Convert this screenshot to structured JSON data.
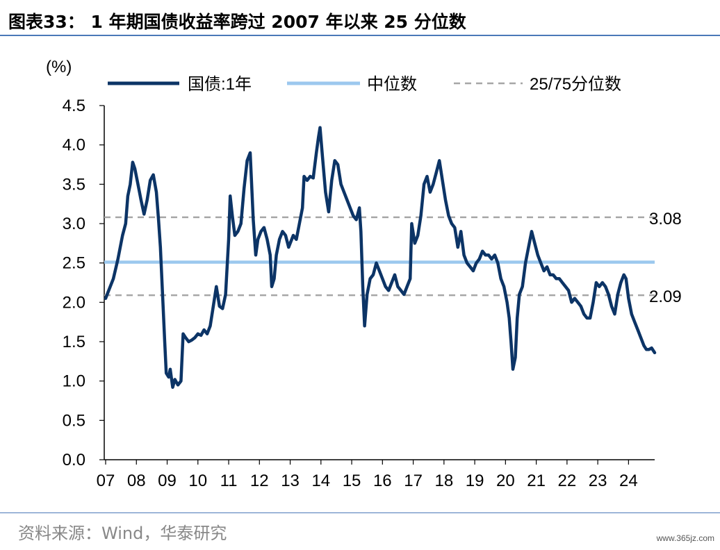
{
  "page": {
    "title": "图表33： 1 年期国债收益率跨过 2007 年以来 25 分位数",
    "source": "资料来源：Wind，华泰研究",
    "watermark": "www.365jz.com"
  },
  "colors": {
    "series_main": "#0c3466",
    "median": "#9cc8ee",
    "quantile": "#a6a6a6",
    "rule": "#4a78b8"
  },
  "chart_data": {
    "type": "line",
    "ylabel": "(%)",
    "ylim": [
      0,
      4.5
    ],
    "yticks": [
      0.0,
      0.5,
      1.0,
      1.5,
      2.0,
      2.5,
      3.0,
      3.5,
      4.0,
      4.5
    ],
    "ytick_labels": [
      "0.0",
      "0.5",
      "1.0",
      "1.5",
      "2.0",
      "2.5",
      "3.0",
      "3.5",
      "4.0",
      "4.5"
    ],
    "xlim": [
      2007.0,
      2024.85
    ],
    "xtick_labels": [
      "07",
      "08",
      "09",
      "10",
      "11",
      "12",
      "13",
      "14",
      "15",
      "16",
      "17",
      "18",
      "19",
      "20",
      "21",
      "22",
      "23",
      "24"
    ],
    "grid": false,
    "legend_position": "top",
    "legend": [
      "国债:1年",
      "中位数",
      "25/75分位数"
    ],
    "series": [
      {
        "name": "国债:1年",
        "points": [
          [
            2007.0,
            2.05
          ],
          [
            2007.1,
            2.15
          ],
          [
            2007.25,
            2.3
          ],
          [
            2007.4,
            2.55
          ],
          [
            2007.55,
            2.85
          ],
          [
            2007.65,
            3.0
          ],
          [
            2007.72,
            3.35
          ],
          [
            2007.8,
            3.5
          ],
          [
            2007.88,
            3.78
          ],
          [
            2007.95,
            3.7
          ],
          [
            2008.05,
            3.5
          ],
          [
            2008.15,
            3.3
          ],
          [
            2008.25,
            3.12
          ],
          [
            2008.35,
            3.3
          ],
          [
            2008.45,
            3.55
          ],
          [
            2008.55,
            3.62
          ],
          [
            2008.65,
            3.4
          ],
          [
            2008.72,
            3.05
          ],
          [
            2008.78,
            2.7
          ],
          [
            2008.85,
            2.1
          ],
          [
            2008.92,
            1.5
          ],
          [
            2008.97,
            1.1
          ],
          [
            2009.05,
            1.05
          ],
          [
            2009.1,
            1.15
          ],
          [
            2009.18,
            0.92
          ],
          [
            2009.25,
            1.02
          ],
          [
            2009.35,
            0.95
          ],
          [
            2009.45,
            1.0
          ],
          [
            2009.52,
            1.6
          ],
          [
            2009.6,
            1.55
          ],
          [
            2009.7,
            1.5
          ],
          [
            2009.8,
            1.52
          ],
          [
            2009.9,
            1.55
          ],
          [
            2010.0,
            1.6
          ],
          [
            2010.1,
            1.58
          ],
          [
            2010.2,
            1.65
          ],
          [
            2010.3,
            1.6
          ],
          [
            2010.4,
            1.7
          ],
          [
            2010.5,
            1.95
          ],
          [
            2010.6,
            2.2
          ],
          [
            2010.7,
            1.95
          ],
          [
            2010.8,
            1.92
          ],
          [
            2010.9,
            2.1
          ],
          [
            2011.0,
            2.8
          ],
          [
            2011.05,
            3.35
          ],
          [
            2011.12,
            3.1
          ],
          [
            2011.2,
            2.85
          ],
          [
            2011.3,
            2.9
          ],
          [
            2011.4,
            3.0
          ],
          [
            2011.5,
            3.45
          ],
          [
            2011.6,
            3.8
          ],
          [
            2011.7,
            3.9
          ],
          [
            2011.8,
            3.05
          ],
          [
            2011.88,
            2.6
          ],
          [
            2011.95,
            2.8
          ],
          [
            2012.05,
            2.9
          ],
          [
            2012.15,
            2.95
          ],
          [
            2012.25,
            2.8
          ],
          [
            2012.35,
            2.6
          ],
          [
            2012.4,
            2.2
          ],
          [
            2012.48,
            2.3
          ],
          [
            2012.55,
            2.6
          ],
          [
            2012.65,
            2.8
          ],
          [
            2012.75,
            2.9
          ],
          [
            2012.85,
            2.85
          ],
          [
            2012.95,
            2.7
          ],
          [
            2013.1,
            2.85
          ],
          [
            2013.2,
            2.8
          ],
          [
            2013.3,
            3.0
          ],
          [
            2013.4,
            3.2
          ],
          [
            2013.45,
            3.6
          ],
          [
            2013.55,
            3.55
          ],
          [
            2013.65,
            3.6
          ],
          [
            2013.75,
            3.58
          ],
          [
            2013.85,
            3.9
          ],
          [
            2013.92,
            4.1
          ],
          [
            2013.97,
            4.22
          ],
          [
            2014.05,
            3.85
          ],
          [
            2014.15,
            3.4
          ],
          [
            2014.25,
            3.15
          ],
          [
            2014.35,
            3.55
          ],
          [
            2014.45,
            3.8
          ],
          [
            2014.55,
            3.75
          ],
          [
            2014.65,
            3.5
          ],
          [
            2014.75,
            3.4
          ],
          [
            2014.85,
            3.3
          ],
          [
            2014.95,
            3.2
          ],
          [
            2015.05,
            3.1
          ],
          [
            2015.15,
            3.05
          ],
          [
            2015.25,
            3.2
          ],
          [
            2015.3,
            2.9
          ],
          [
            2015.36,
            2.2
          ],
          [
            2015.42,
            1.7
          ],
          [
            2015.5,
            2.1
          ],
          [
            2015.6,
            2.3
          ],
          [
            2015.7,
            2.35
          ],
          [
            2015.8,
            2.5
          ],
          [
            2015.9,
            2.4
          ],
          [
            2016.0,
            2.3
          ],
          [
            2016.1,
            2.2
          ],
          [
            2016.2,
            2.15
          ],
          [
            2016.3,
            2.25
          ],
          [
            2016.4,
            2.35
          ],
          [
            2016.5,
            2.2
          ],
          [
            2016.6,
            2.15
          ],
          [
            2016.7,
            2.1
          ],
          [
            2016.8,
            2.2
          ],
          [
            2016.9,
            2.3
          ],
          [
            2016.95,
            3.0
          ],
          [
            2017.05,
            2.75
          ],
          [
            2017.15,
            2.85
          ],
          [
            2017.25,
            3.1
          ],
          [
            2017.35,
            3.5
          ],
          [
            2017.45,
            3.6
          ],
          [
            2017.55,
            3.4
          ],
          [
            2017.65,
            3.5
          ],
          [
            2017.75,
            3.65
          ],
          [
            2017.85,
            3.8
          ],
          [
            2017.95,
            3.55
          ],
          [
            2018.05,
            3.3
          ],
          [
            2018.15,
            3.1
          ],
          [
            2018.25,
            3.0
          ],
          [
            2018.35,
            2.95
          ],
          [
            2018.45,
            2.7
          ],
          [
            2018.55,
            2.9
          ],
          [
            2018.65,
            2.6
          ],
          [
            2018.75,
            2.5
          ],
          [
            2018.85,
            2.45
          ],
          [
            2018.95,
            2.4
          ],
          [
            2019.05,
            2.5
          ],
          [
            2019.15,
            2.55
          ],
          [
            2019.25,
            2.65
          ],
          [
            2019.35,
            2.6
          ],
          [
            2019.45,
            2.6
          ],
          [
            2019.55,
            2.55
          ],
          [
            2019.65,
            2.6
          ],
          [
            2019.75,
            2.5
          ],
          [
            2019.85,
            2.3
          ],
          [
            2019.95,
            2.2
          ],
          [
            2020.05,
            2.0
          ],
          [
            2020.12,
            1.8
          ],
          [
            2020.18,
            1.5
          ],
          [
            2020.24,
            1.15
          ],
          [
            2020.32,
            1.3
          ],
          [
            2020.38,
            1.8
          ],
          [
            2020.45,
            2.1
          ],
          [
            2020.55,
            2.2
          ],
          [
            2020.65,
            2.5
          ],
          [
            2020.75,
            2.7
          ],
          [
            2020.85,
            2.9
          ],
          [
            2020.95,
            2.75
          ],
          [
            2021.05,
            2.6
          ],
          [
            2021.15,
            2.5
          ],
          [
            2021.25,
            2.4
          ],
          [
            2021.35,
            2.45
          ],
          [
            2021.45,
            2.35
          ],
          [
            2021.55,
            2.35
          ],
          [
            2021.65,
            2.3
          ],
          [
            2021.75,
            2.3
          ],
          [
            2021.85,
            2.25
          ],
          [
            2021.95,
            2.2
          ],
          [
            2022.05,
            2.15
          ],
          [
            2022.15,
            2.0
          ],
          [
            2022.25,
            2.05
          ],
          [
            2022.35,
            2.0
          ],
          [
            2022.45,
            1.95
          ],
          [
            2022.55,
            1.85
          ],
          [
            2022.65,
            1.8
          ],
          [
            2022.75,
            1.8
          ],
          [
            2022.85,
            2.0
          ],
          [
            2022.95,
            2.25
          ],
          [
            2023.05,
            2.2
          ],
          [
            2023.15,
            2.25
          ],
          [
            2023.25,
            2.2
          ],
          [
            2023.35,
            2.1
          ],
          [
            2023.45,
            1.95
          ],
          [
            2023.55,
            1.85
          ],
          [
            2023.65,
            2.1
          ],
          [
            2023.75,
            2.25
          ],
          [
            2023.85,
            2.35
          ],
          [
            2023.92,
            2.3
          ],
          [
            2024.0,
            2.05
          ],
          [
            2024.1,
            1.85
          ],
          [
            2024.2,
            1.75
          ],
          [
            2024.3,
            1.65
          ],
          [
            2024.4,
            1.55
          ],
          [
            2024.5,
            1.45
          ],
          [
            2024.58,
            1.4
          ],
          [
            2024.66,
            1.4
          ],
          [
            2024.75,
            1.42
          ],
          [
            2024.85,
            1.36
          ]
        ]
      },
      {
        "name": "中位数",
        "value": 2.51
      },
      {
        "name": "25/75分位数",
        "values": [
          2.09,
          3.08
        ],
        "labels": [
          "2.09",
          "3.08"
        ]
      }
    ]
  }
}
